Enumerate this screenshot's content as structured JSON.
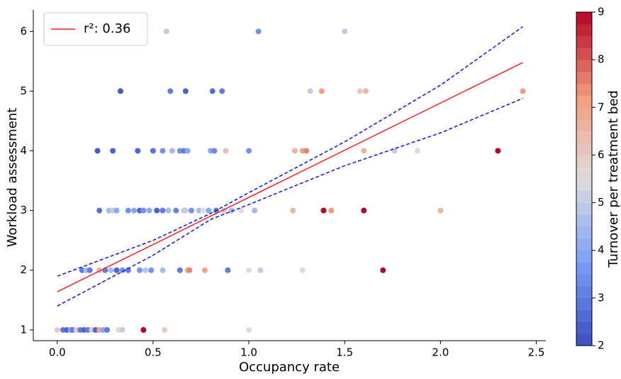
{
  "chart_data": {
    "type": "scatter",
    "xlabel": "Occupancy rate",
    "ylabel": "Workload assessment",
    "xlim": [
      -0.125,
      2.55
    ],
    "ylim": [
      0.82,
      6.36
    ],
    "xticks": [
      {
        "value": 0,
        "label": "0.0"
      },
      0.5,
      {
        "value": 1,
        "label": "1.0"
      },
      1.5,
      {
        "value": 2,
        "label": "2.0"
      },
      2.5
    ],
    "yticks": [
      1,
      2,
      3,
      4,
      5,
      6
    ],
    "points": {
      "x": [
        0.57,
        1.05,
        1.5,
        0.33,
        0.59,
        0.67,
        0.81,
        0.86,
        1.32,
        1.38,
        1.58,
        1.61,
        2.43,
        0.21,
        0.29,
        0.42,
        0.5,
        0.55,
        0.6,
        0.64,
        0.66,
        0.68,
        0.8,
        0.82,
        0.88,
        1.0,
        1.24,
        1.28,
        1.3,
        1.6,
        1.76,
        1.88,
        2.3,
        0.22,
        0.27,
        0.29,
        0.31,
        0.37,
        0.4,
        0.43,
        0.45,
        0.48,
        0.52,
        0.55,
        0.58,
        0.62,
        0.67,
        0.7,
        0.74,
        0.76,
        0.79,
        0.83,
        0.87,
        0.91,
        0.96,
        1.03,
        1.23,
        1.39,
        1.43,
        1.6,
        2.0,
        0.66,
        0.13,
        0.15,
        0.17,
        0.22,
        0.25,
        0.28,
        0.31,
        0.34,
        0.37,
        0.43,
        0.46,
        0.49,
        0.55,
        0.64,
        0.68,
        0.69,
        0.77,
        0.89,
        1.0,
        1.06,
        1.28,
        1.7,
        0.0,
        0.03,
        0.05,
        0.07,
        0.08,
        0.1,
        0.12,
        0.14,
        0.16,
        0.18,
        0.2,
        0.22,
        0.24,
        0.26,
        0.32,
        0.34,
        0.45,
        0.56,
        1.0
      ],
      "y": [
        6,
        6,
        6,
        5,
        5,
        5,
        5,
        5,
        5,
        5,
        5,
        5,
        5,
        4,
        4,
        4,
        4,
        4,
        4,
        4,
        4,
        4,
        4,
        4,
        4,
        4,
        4,
        4,
        4,
        4,
        4,
        4,
        4,
        3,
        3,
        3,
        3,
        3,
        3,
        3,
        3,
        3,
        3,
        3,
        3,
        3,
        3,
        3,
        3,
        3,
        3,
        3,
        3,
        3,
        3,
        3,
        3,
        3,
        3,
        3,
        3,
        3,
        2,
        2,
        2,
        2,
        2,
        2,
        2,
        2,
        2,
        2,
        2,
        2,
        2,
        2,
        2,
        2,
        2,
        2,
        2,
        2,
        2,
        2,
        1,
        1,
        1,
        1,
        1,
        1,
        1,
        1,
        1,
        1,
        1,
        1,
        1,
        1,
        1,
        1,
        1,
        1,
        1
      ],
      "c": [
        5,
        3.5,
        5,
        2.3,
        3,
        2.5,
        2.7,
        3,
        5,
        7.2,
        6,
        6.5,
        7.2,
        2.3,
        2.5,
        2.5,
        2.8,
        3.5,
        4.5,
        3.5,
        3,
        4,
        4,
        3.3,
        6.3,
        3.5,
        6.5,
        7,
        7.5,
        6.5,
        5,
        5.5,
        9,
        2.8,
        4.5,
        5,
        4,
        3.5,
        4,
        2.5,
        3.5,
        4,
        2.5,
        3,
        4.5,
        3.2,
        6,
        3.5,
        4.5,
        5.5,
        4,
        3,
        5,
        4.5,
        5.5,
        4.5,
        6.5,
        9,
        7.2,
        9,
        6.5,
        5,
        3,
        4.5,
        3,
        6.5,
        3,
        4.5,
        2.5,
        3.5,
        3,
        3.5,
        4.8,
        3.5,
        4.5,
        3,
        6.5,
        7.5,
        7,
        3,
        5.5,
        5,
        5.5,
        9,
        6,
        3,
        2.5,
        4,
        3,
        6,
        3,
        2.5,
        3,
        6,
        2.5,
        7,
        4,
        3,
        5.5,
        5,
        9,
        6,
        5.5
      ]
    },
    "colorbar": {
      "label": "Turnover per treatment bed",
      "lim": [
        2,
        9
      ],
      "ticks": [
        2,
        3,
        4,
        5,
        6,
        7,
        8,
        9
      ],
      "colormap": "coolwarm"
    },
    "lines": [
      {
        "name": "r²: 0.36",
        "color": "#ff2020",
        "style": "solid",
        "x": [
          0,
          2.43
        ],
        "y": [
          1.64,
          5.48
        ]
      },
      {
        "color": "#1010ee",
        "style": "dashed",
        "x": [
          0,
          0.5,
          0.8,
          1.0,
          1.5,
          2.0,
          2.43
        ],
        "y": [
          1.9,
          2.5,
          2.95,
          3.3,
          4.15,
          5.1,
          6.08
        ]
      },
      {
        "color": "#1010ee",
        "style": "dashed",
        "x": [
          0,
          0.5,
          0.8,
          1.0,
          1.5,
          2.0,
          2.43
        ],
        "y": [
          1.4,
          2.25,
          2.85,
          3.1,
          3.75,
          4.3,
          4.88
        ]
      }
    ],
    "legend": "upper left"
  }
}
